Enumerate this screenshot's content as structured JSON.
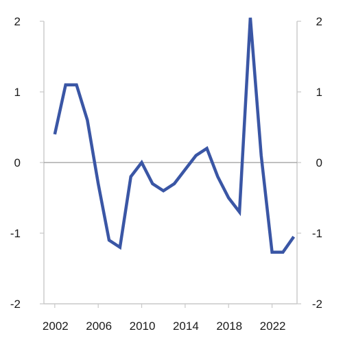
{
  "chart_data": {
    "type": "line",
    "title": "",
    "xlabel": "",
    "ylabel": "",
    "xlim": [
      2001,
      2024.3
    ],
    "ylim": [
      -2,
      2
    ],
    "x_ticks": [
      2002,
      2006,
      2010,
      2014,
      2018,
      2022
    ],
    "x_tick_labels": [
      "2002",
      "2006",
      "2010",
      "2014",
      "2018",
      "2022"
    ],
    "y_ticks": [
      -2,
      -1,
      0,
      1,
      2
    ],
    "y_tick_labels_left": [
      "-2",
      "-1",
      "0",
      "1",
      "2"
    ],
    "y_tick_labels_right": [
      "-2",
      "-1",
      "0",
      "1",
      "2"
    ],
    "grid": false,
    "zero_line": true,
    "colors": {
      "series": "#3a56a5"
    },
    "series": [
      {
        "x": [
          2002,
          2003,
          2004,
          2005,
          2006,
          2007,
          2008,
          2009,
          2010,
          2011,
          2012,
          2013,
          2014,
          2015,
          2016,
          2017,
          2018,
          2019,
          2020,
          2021,
          2022,
          2023,
          2024
        ],
        "values": [
          0.4,
          1.1,
          1.1,
          0.6,
          -0.3,
          -1.1,
          -1.2,
          -0.2,
          0.0,
          -0.3,
          -0.4,
          -0.3,
          -0.1,
          0.1,
          0.2,
          -0.2,
          -0.5,
          -0.7,
          2.05,
          0.1,
          -1.27,
          -1.27,
          -1.05
        ]
      }
    ]
  }
}
